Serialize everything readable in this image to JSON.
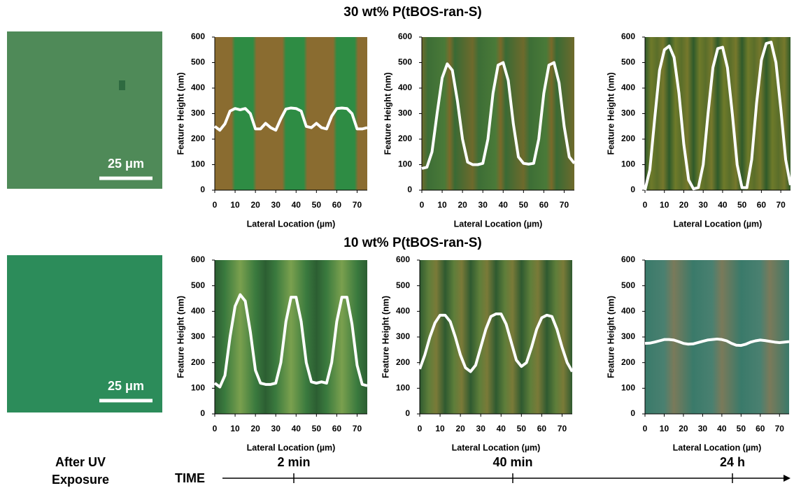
{
  "row_titles": [
    "30 wt% P(tBOS-ran-S)",
    "10 wt% P(tBOS-ran-S)"
  ],
  "scale_bars": [
    "25 μm",
    "25 μm"
  ],
  "timeline": {
    "left_label": [
      "After UV",
      "Exposure"
    ],
    "axis_label": "TIME",
    "times": [
      "2 min",
      "40 min",
      "24 h"
    ]
  },
  "chart_data": [
    {
      "type": "line",
      "x_label": "Lateral Location (µm)",
      "y_label": "Feature Height (nm)",
      "color": "#ffffff",
      "xlim": [
        0,
        75
      ],
      "ylim": [
        0,
        600
      ],
      "xticks": [
        0,
        10,
        20,
        30,
        40,
        50,
        60,
        70
      ],
      "yticks": [
        0,
        100,
        200,
        300,
        400,
        500,
        600
      ],
      "x": [
        0,
        2.5,
        5,
        7.5,
        10,
        12.5,
        15,
        17.5,
        20,
        22.5,
        25,
        27.5,
        30,
        32.5,
        35,
        37.5,
        40,
        42.5,
        45,
        47.5,
        50,
        52.5,
        55,
        57.5,
        60,
        62.5,
        65,
        67.5,
        70,
        72.5,
        75
      ],
      "values": [
        250,
        235,
        260,
        310,
        320,
        315,
        320,
        300,
        240,
        240,
        262,
        245,
        235,
        280,
        318,
        322,
        320,
        310,
        250,
        245,
        262,
        245,
        240,
        290,
        320,
        322,
        320,
        300,
        240,
        240,
        245
      ]
    },
    {
      "type": "line",
      "x_label": "Lateral Location (µm)",
      "y_label": "Feature Height (nm)",
      "color": "#ffffff",
      "xlim": [
        0,
        75
      ],
      "ylim": [
        0,
        600
      ],
      "xticks": [
        0,
        10,
        20,
        30,
        40,
        50,
        60,
        70
      ],
      "yticks": [
        0,
        100,
        200,
        300,
        400,
        500,
        600
      ],
      "x": [
        0,
        2.5,
        5,
        7.5,
        10,
        12.5,
        15,
        17.5,
        20,
        22.5,
        25,
        27.5,
        30,
        32.5,
        35,
        37.5,
        40,
        42.5,
        45,
        47.5,
        50,
        52.5,
        55,
        57.5,
        60,
        62.5,
        65,
        67.5,
        70,
        72.5,
        75
      ],
      "values": [
        85,
        90,
        150,
        300,
        440,
        495,
        470,
        350,
        200,
        110,
        100,
        100,
        105,
        200,
        380,
        490,
        500,
        430,
        260,
        130,
        105,
        102,
        105,
        200,
        380,
        490,
        500,
        420,
        250,
        130,
        105
      ]
    },
    {
      "type": "line",
      "x_label": "Lateral Location (µm)",
      "y_label": "Feature Height (nm)",
      "color": "#ffffff",
      "xlim": [
        0,
        75
      ],
      "ylim": [
        0,
        600
      ],
      "xticks": [
        0,
        10,
        20,
        30,
        40,
        50,
        60,
        70
      ],
      "yticks": [
        0,
        100,
        200,
        300,
        400,
        500,
        600
      ],
      "x": [
        0,
        2.5,
        5,
        7.5,
        10,
        12.5,
        15,
        17.5,
        20,
        22.5,
        25,
        27.5,
        30,
        32.5,
        35,
        37.5,
        40,
        42.5,
        45,
        47.5,
        50,
        52.5,
        55,
        57.5,
        60,
        62.5,
        65,
        67.5,
        70,
        72.5,
        75
      ],
      "values": [
        0,
        80,
        280,
        470,
        550,
        565,
        520,
        380,
        180,
        40,
        5,
        10,
        100,
        300,
        480,
        555,
        560,
        480,
        300,
        100,
        10,
        10,
        120,
        340,
        510,
        575,
        580,
        500,
        320,
        120,
        20
      ]
    },
    {
      "type": "line",
      "x_label": "Lateral Location (µm)",
      "y_label": "Feature Height (nm)",
      "color": "#ffffff",
      "xlim": [
        0,
        75
      ],
      "ylim": [
        0,
        600
      ],
      "xticks": [
        0,
        10,
        20,
        30,
        40,
        50,
        60,
        70
      ],
      "yticks": [
        0,
        100,
        200,
        300,
        400,
        500,
        600
      ],
      "x": [
        0,
        2.5,
        5,
        7.5,
        10,
        12.5,
        15,
        17.5,
        20,
        22.5,
        25,
        27.5,
        30,
        32.5,
        35,
        37.5,
        40,
        42.5,
        45,
        47.5,
        50,
        52.5,
        55,
        57.5,
        60,
        62.5,
        65,
        67.5,
        70,
        72.5,
        75
      ],
      "values": [
        120,
        105,
        150,
        300,
        420,
        465,
        440,
        320,
        170,
        120,
        115,
        115,
        120,
        200,
        360,
        455,
        455,
        360,
        200,
        125,
        120,
        125,
        120,
        200,
        360,
        455,
        455,
        350,
        190,
        115,
        110
      ]
    },
    {
      "type": "line",
      "x_label": "Lateral Location (µm)",
      "y_label": "Feature Height (nm)",
      "color": "#ffffff",
      "xlim": [
        0,
        75
      ],
      "ylim": [
        0,
        600
      ],
      "xticks": [
        0,
        10,
        20,
        30,
        40,
        50,
        60,
        70
      ],
      "yticks": [
        0,
        100,
        200,
        300,
        400,
        500,
        600
      ],
      "x": [
        0,
        2.5,
        5,
        7.5,
        10,
        12.5,
        15,
        17.5,
        20,
        22.5,
        25,
        27.5,
        30,
        32.5,
        35,
        37.5,
        40,
        42.5,
        45,
        47.5,
        50,
        52.5,
        55,
        57.5,
        60,
        62.5,
        65,
        67.5,
        70,
        72.5,
        75
      ],
      "values": [
        175,
        230,
        300,
        355,
        385,
        385,
        360,
        300,
        230,
        180,
        165,
        190,
        260,
        330,
        380,
        390,
        390,
        350,
        280,
        210,
        185,
        200,
        260,
        330,
        375,
        385,
        380,
        330,
        260,
        200,
        165
      ]
    },
    {
      "type": "line",
      "x_label": "Lateral Location (µm)",
      "y_label": "Feature Height (nm)",
      "color": "#ffffff",
      "xlim": [
        0,
        75
      ],
      "ylim": [
        0,
        600
      ],
      "xticks": [
        0,
        10,
        20,
        30,
        40,
        50,
        60,
        70
      ],
      "yticks": [
        0,
        100,
        200,
        300,
        400,
        500,
        600
      ],
      "x": [
        0,
        2.5,
        5,
        7.5,
        10,
        12.5,
        15,
        17.5,
        20,
        22.5,
        25,
        27.5,
        30,
        32.5,
        35,
        37.5,
        40,
        42.5,
        45,
        47.5,
        50,
        52.5,
        55,
        57.5,
        60,
        62.5,
        65,
        67.5,
        70,
        72.5,
        75
      ],
      "values": [
        275,
        276,
        280,
        285,
        290,
        290,
        288,
        282,
        275,
        272,
        273,
        278,
        283,
        288,
        290,
        292,
        290,
        285,
        275,
        268,
        267,
        272,
        280,
        285,
        288,
        286,
        283,
        280,
        278,
        280,
        282
      ]
    }
  ]
}
